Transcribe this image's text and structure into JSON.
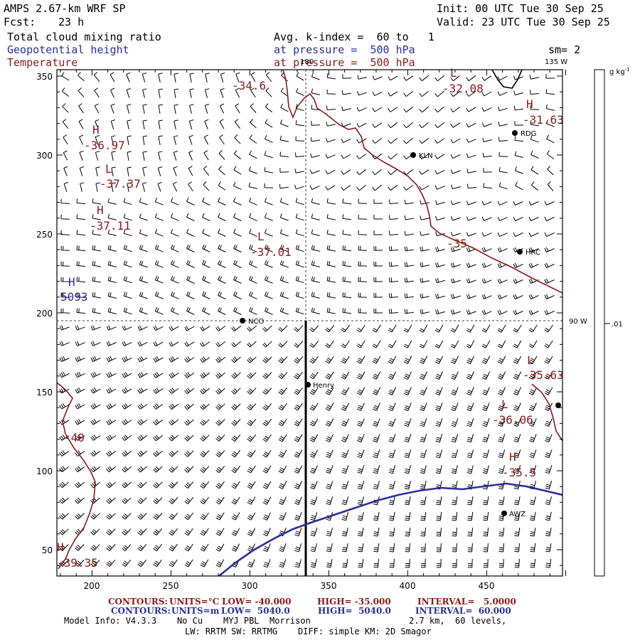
{
  "header": {
    "model": "AMPS 2.67-km WRF SP",
    "init": "Init: 00 UTC Tue 30 Sep 25",
    "fcst_label": "Fcst:",
    "fcst_value": "23 h",
    "valid": "Valid: 23 UTC Tue 30 Sep 25",
    "field1": "Total cloud mixing ratio",
    "field2": "Geopotential height",
    "field3": "Temperature",
    "avg": "Avg. k-index =  60 to   1",
    "press2": "at pressure =  500 hPa",
    "press3": "at pressure =  500 hPa",
    "sm": "sm= 2"
  },
  "map": {
    "lon_label_top_left": "180",
    "lon_label_top_right": "135 W",
    "lon_label_right": "90 W",
    "x_ticks": [
      "200",
      "250",
      "300",
      "350",
      "400",
      "450"
    ],
    "y_ticks": [
      "350",
      "300",
      "250",
      "200",
      "150",
      "100",
      "50"
    ],
    "stations": [
      {
        "name": "KLN"
      },
      {
        "name": "RDG"
      },
      {
        "name": "HRC"
      },
      {
        "name": "NCO"
      },
      {
        "name": "Henry"
      },
      {
        "name": "AWZ"
      },
      {
        "name": ""
      }
    ],
    "labels": {
      "t1": "-34.6",
      "t2": "-32.08",
      "t3": "-31.63",
      "t4": "-36.97",
      "t5": "-37.37",
      "t6": "-37.11",
      "t7": "-37.01",
      "t8": "-35",
      "t9": "-35.63",
      "t10": "-36.06",
      "t11": "-35.5",
      "t12": "-40",
      "t13": "-39.35",
      "z1": "5093",
      "H": "H",
      "L": "L"
    },
    "colors": {
      "temperature": "#8b1a1a",
      "height": "#2b2f9a"
    }
  },
  "colorbar": {
    "unit": "g kg",
    "unit_sup": "-1",
    "mid_label": ".01"
  },
  "footer": {
    "c1_contours": "CONTOURS:",
    "c1_units": "UNITS=°C",
    "c1_low": "LOW= -40.000",
    "c1_high": "HIGH= -35.000",
    "c1_interval": "INTERVAL=   5.0000",
    "c2_contours": "CONTOURS:",
    "c2_units": "UNITS=m",
    "c2_low": "LOW=  5040.0",
    "c2_high": "HIGH=  5040.0",
    "c2_interval": "INTERVAL=  60.000",
    "model_info": "Model Info: V4.3.3    No Cu    MYJ PBL  Morrison",
    "levels": "2.7 km,  60 levels,",
    "physics": "LW: RRTM SW: RRTMG    DIFF: simple KM: 2D Smagor"
  }
}
